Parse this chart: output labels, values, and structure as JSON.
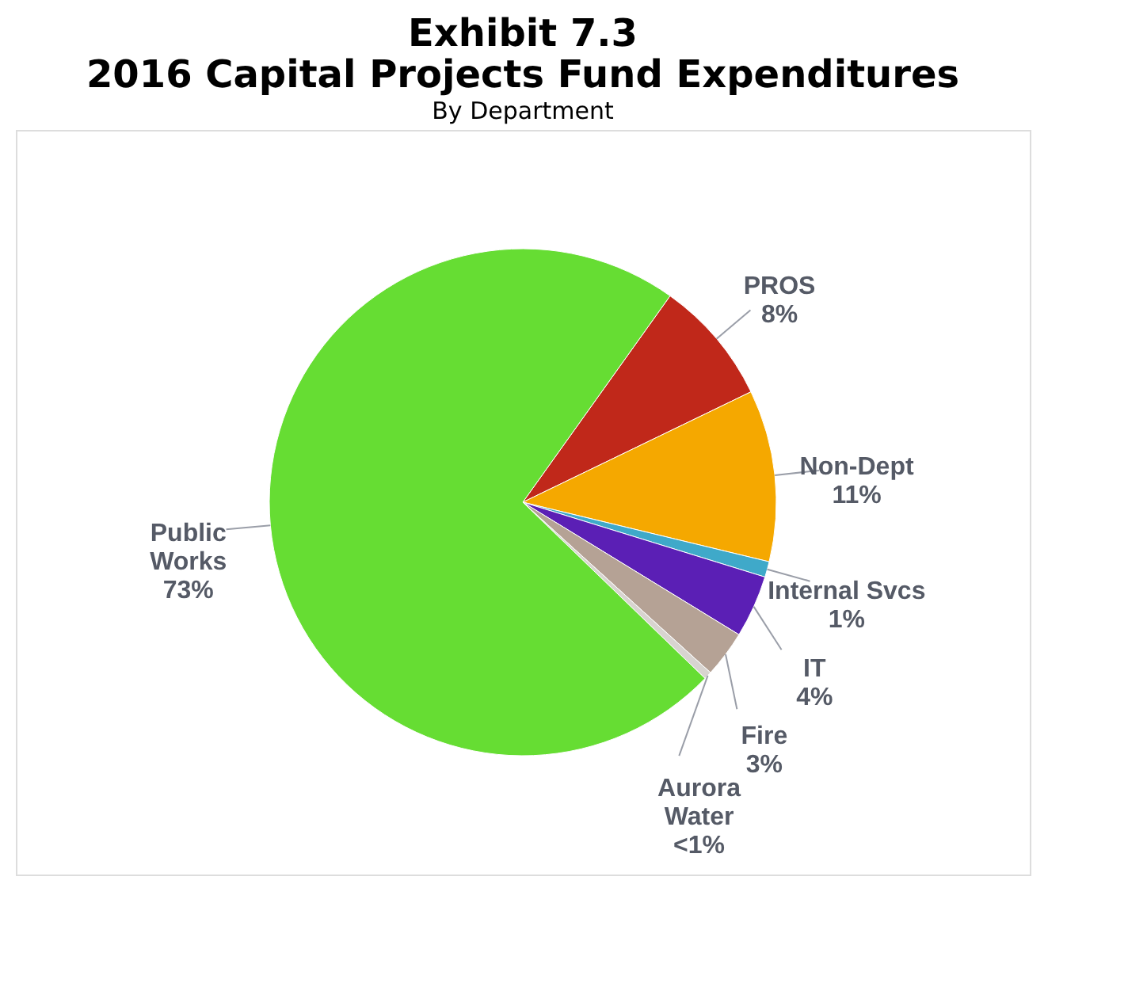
{
  "chart_data": {
    "type": "pie",
    "title": "Exhibit 7.3\n2016 Capital Projects Fund Expenditures",
    "subtitle": "By Department",
    "categories": [
      "PROS",
      "Non-Dept",
      "Internal Svcs",
      "IT",
      "Fire",
      "Aurora Water",
      "Public Works"
    ],
    "values": [
      8,
      11,
      1,
      4,
      3,
      0.5,
      73
    ],
    "value_labels": [
      "8%",
      "11%",
      "1%",
      "4%",
      "3%",
      "<1%",
      "73%"
    ],
    "colors": [
      "#c0281a",
      "#f5a800",
      "#3fa9c9",
      "#5b1fb5",
      "#b5a295",
      "#d8d4d0",
      "#66dd33"
    ]
  }
}
